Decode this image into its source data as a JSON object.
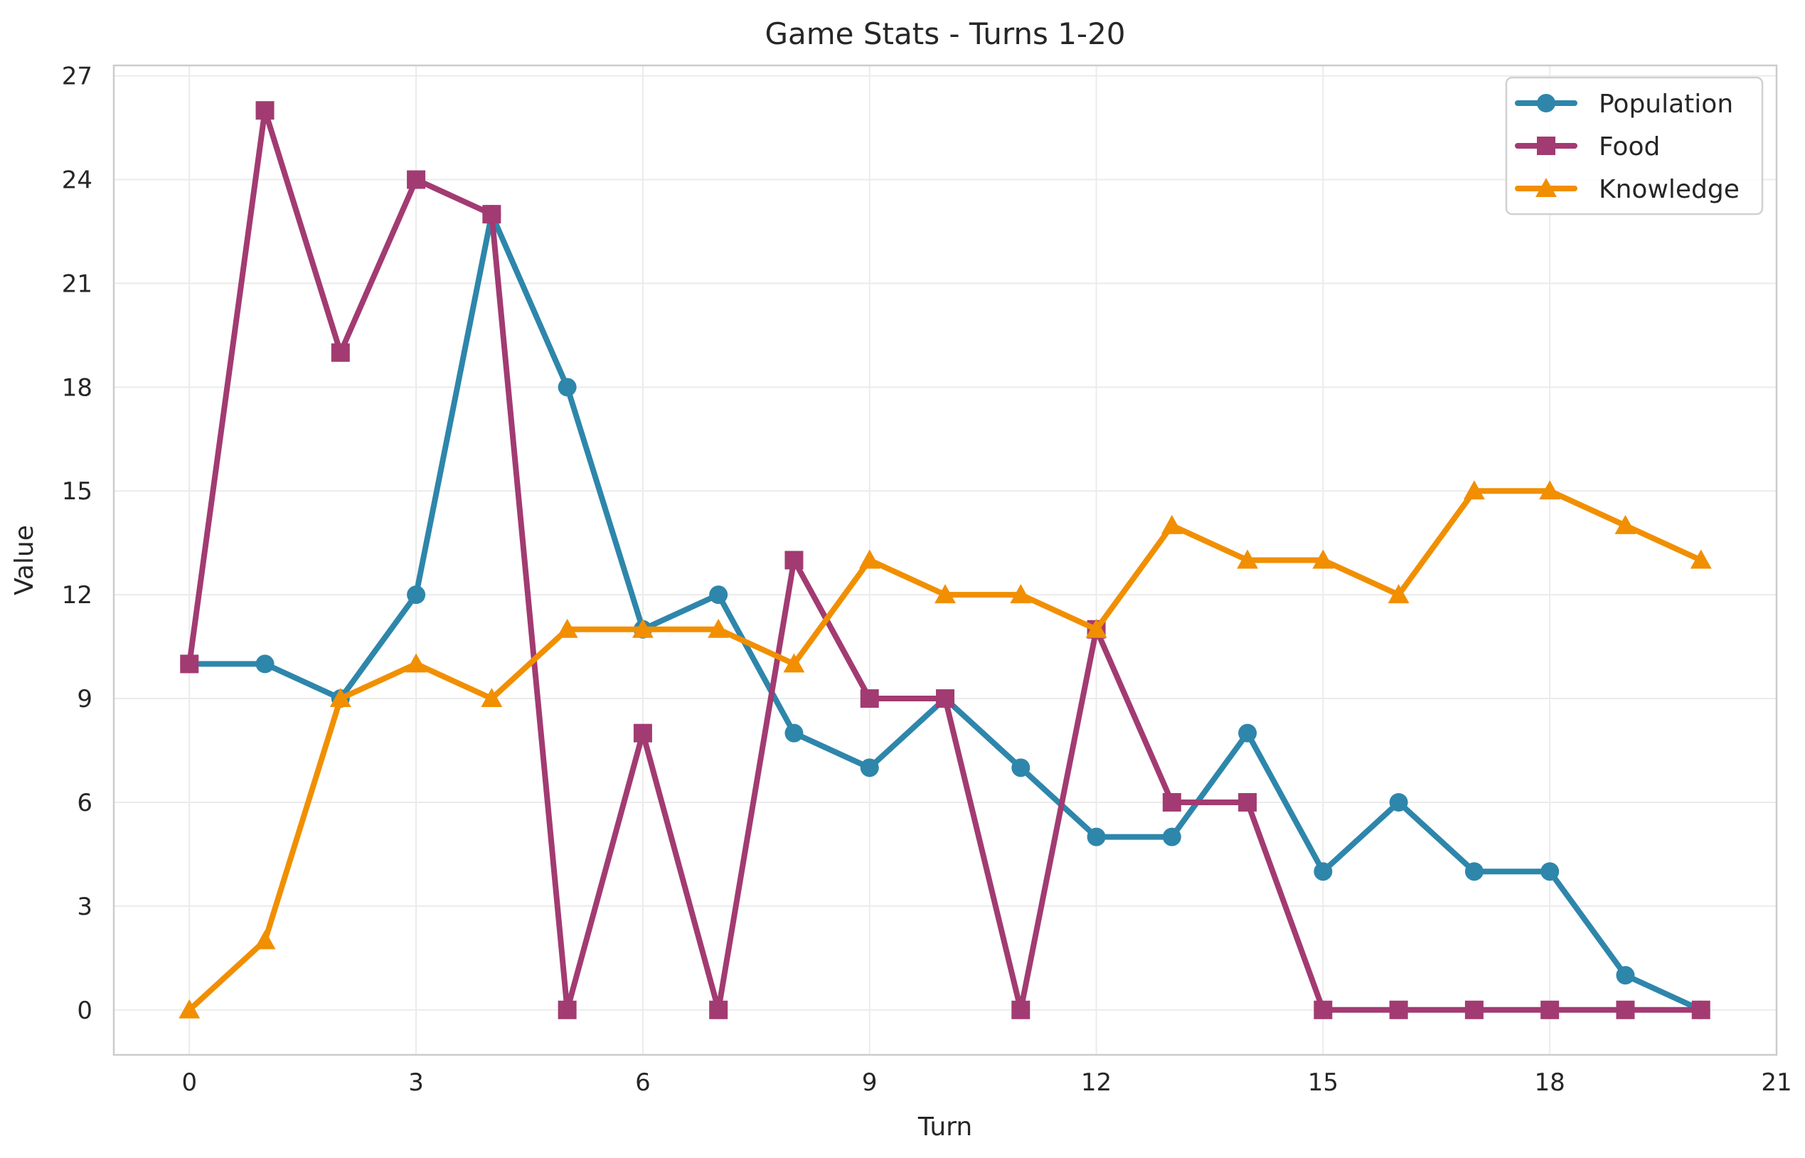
{
  "chart_data": {
    "type": "line",
    "title": "Game Stats - Turns 1-20",
    "xlabel": "Turn",
    "ylabel": "Value",
    "xlim": [
      -1,
      21
    ],
    "ylim": [
      -1.3,
      27.3
    ],
    "xticks": [
      0,
      3,
      6,
      9,
      12,
      15,
      18,
      21
    ],
    "yticks": [
      0,
      3,
      6,
      9,
      12,
      15,
      18,
      21,
      24,
      27
    ],
    "grid": true,
    "legend_position": "top-right",
    "x": [
      0,
      1,
      2,
      3,
      4,
      5,
      6,
      7,
      8,
      9,
      10,
      11,
      12,
      13,
      14,
      15,
      16,
      17,
      18,
      19,
      20
    ],
    "series": [
      {
        "name": "Population",
        "color": "#2e86ab",
        "marker": "circle",
        "values": [
          10,
          10,
          9,
          12,
          23,
          18,
          11,
          12,
          8,
          7,
          9,
          7,
          5,
          5,
          8,
          4,
          6,
          4,
          4,
          1,
          0
        ]
      },
      {
        "name": "Food",
        "color": "#a23b72",
        "marker": "square",
        "values": [
          10,
          26,
          19,
          24,
          23,
          0,
          8,
          0,
          13,
          9,
          9,
          0,
          11,
          6,
          6,
          0,
          0,
          0,
          0,
          0,
          0
        ]
      },
      {
        "name": "Knowledge",
        "color": "#f18f01",
        "marker": "triangle",
        "values": [
          0,
          2,
          9,
          10,
          9,
          11,
          11,
          11,
          10,
          13,
          12,
          12,
          11,
          14,
          13,
          13,
          12,
          15,
          15,
          14,
          13
        ]
      }
    ]
  }
}
